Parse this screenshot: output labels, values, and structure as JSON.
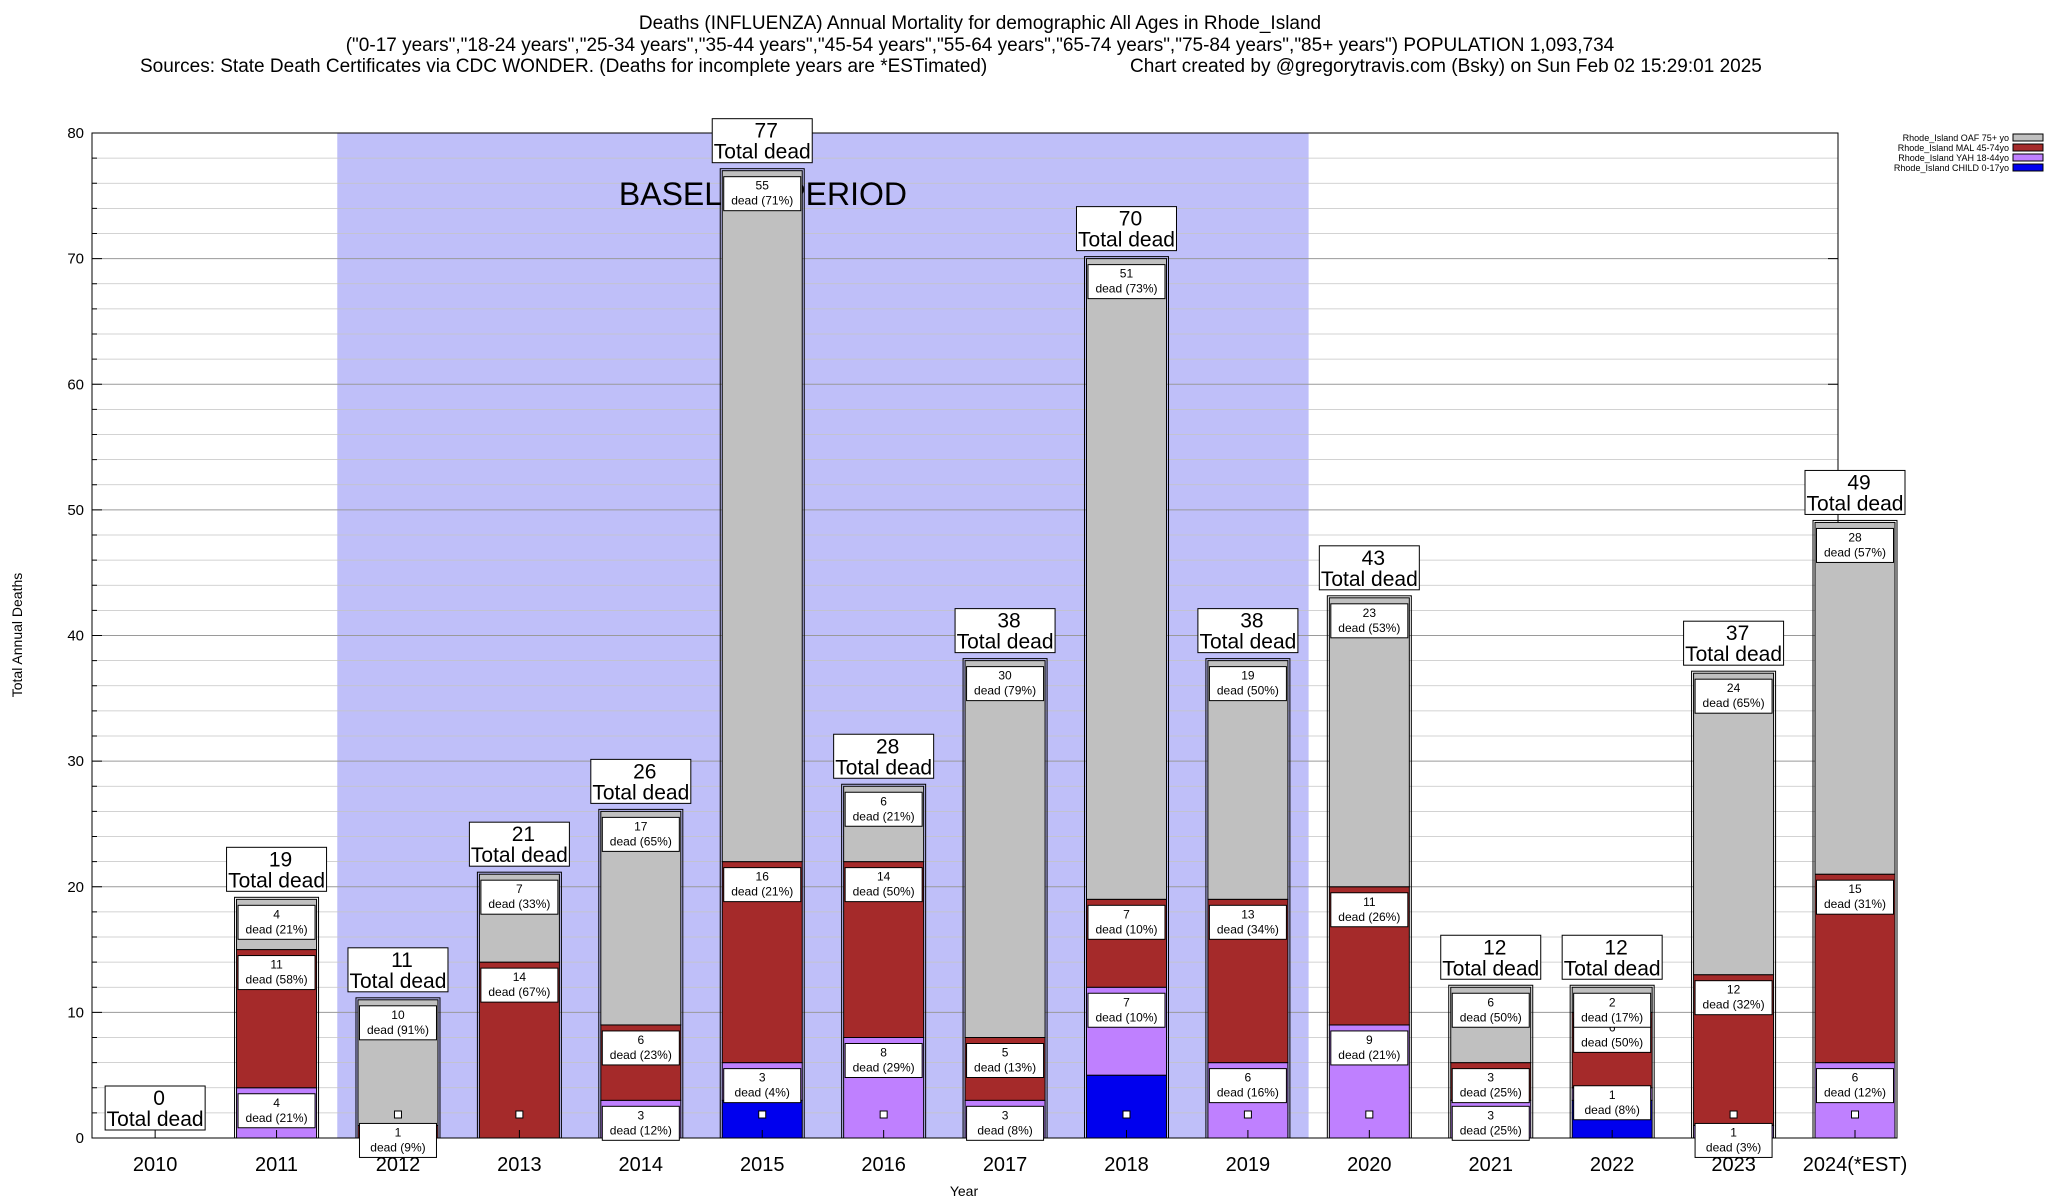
{
  "header": {
    "line1": "Deaths (INFLUENZA) Annual Mortality for demographic All Ages in Rhode_Island",
    "line2": "(\"0-17 years\",\"18-24 years\",\"25-34 years\",\"35-44 years\",\"45-54 years\",\"55-64 years\",\"65-74 years\",\"75-84 years\",\"85+ years\") POPULATION 1,093,734",
    "line3": "Sources: State Death Certificates via CDC WONDER. (Deaths for incomplete years are *ESTimated)",
    "line3b": "Chart created by @gregorytravis.com (Bsky) on Sun Feb 02 15:29:01 2025"
  },
  "chart_data": {
    "type": "bar",
    "stacked": true,
    "xlabel": "Year",
    "ylabel": "Total Annual Deaths",
    "ylim": [
      0,
      80
    ],
    "yticks": [
      0,
      10,
      20,
      30,
      40,
      50,
      60,
      70,
      80
    ],
    "grid": true,
    "legend_position": "top-right",
    "categories": [
      "2010",
      "2011",
      "2012",
      "2013",
      "2014",
      "2015",
      "2016",
      "2017",
      "2018",
      "2019",
      "2020",
      "2021",
      "2022",
      "2023",
      "2024(*EST)"
    ],
    "baseline": {
      "label": "BASELINE PERIOD",
      "from": "2012",
      "to": "2019",
      "color": "#bfbff9"
    },
    "total_label": "Total dead",
    "totals": [
      0,
      19,
      11,
      21,
      26,
      77,
      28,
      38,
      70,
      38,
      43,
      12,
      12,
      37,
      49
    ],
    "series": [
      {
        "name": "Rhode_Island CHILD 0-17yo",
        "color": "#0000ee",
        "values": [
          0,
          0,
          0,
          0,
          0,
          3,
          0,
          0,
          5,
          0,
          0,
          0,
          3,
          0,
          0
        ],
        "labels": [
          null,
          null,
          null,
          null,
          null,
          null,
          null,
          null,
          null,
          null,
          null,
          null,
          null,
          null,
          null
        ]
      },
      {
        "name": "Rhode_Island YAH 18-44yo",
        "color": "#bf80ff",
        "values": [
          0,
          4,
          0,
          0,
          3,
          3,
          8,
          3,
          7,
          6,
          9,
          3,
          1,
          1,
          6
        ],
        "labels": [
          null,
          "4\ndead (21%)",
          null,
          null,
          "3\ndead (12%)",
          "3\ndead (4%)",
          "8\ndead (29%)",
          "3\ndead (8%)",
          "7\ndead (10%)",
          "6\ndead (16%)",
          "9\ndead (21%)",
          "3\ndead (25%)",
          "1\ndead (8%)",
          "1\ndead (3%)",
          "6\ndead (12%)"
        ]
      },
      {
        "name": "Rhode_Island MAL 45-74yo",
        "color": "#a52a2a",
        "values": [
          0,
          11,
          1,
          14,
          6,
          16,
          14,
          5,
          7,
          13,
          11,
          3,
          6,
          12,
          15
        ],
        "labels": [
          null,
          "11\ndead (58%)",
          "1\ndead (9%)",
          "14\ndead (67%)",
          "6\ndead (23%)",
          "16\ndead (21%)",
          "14\ndead (50%)",
          "5\ndead (13%)",
          "7\ndead (10%)",
          "13\ndead (34%)",
          "11\ndead (26%)",
          "3\ndead (25%)",
          "6\ndead (50%)",
          "12\ndead (32%)",
          "15\ndead (31%)"
        ]
      },
      {
        "name": "Rhode_Island OAF 75+ yo",
        "color": "#c0c0c0",
        "values": [
          0,
          4,
          10,
          7,
          17,
          55,
          6,
          30,
          51,
          19,
          23,
          6,
          2,
          24,
          28
        ],
        "labels": [
          null,
          "4\ndead (21%)",
          "10\ndead (91%)",
          "7\ndead (33%)",
          "17\ndead (65%)",
          "55\ndead (71%)",
          "6\ndead (21%)",
          "30\ndead (79%)",
          "51\ndead (73%)",
          "19\ndead (50%)",
          "23\ndead (53%)",
          "6\ndead (50%)",
          "2\ndead (17%)",
          "24\ndead (65%)",
          "28\ndead (57%)"
        ]
      }
    ],
    "legend_order": [
      "Rhode_Island OAF 75+ yo",
      "Rhode_Island MAL 45-74yo",
      "Rhode_Island YAH 18-44yo",
      "Rhode_Island CHILD 0-17yo"
    ]
  }
}
